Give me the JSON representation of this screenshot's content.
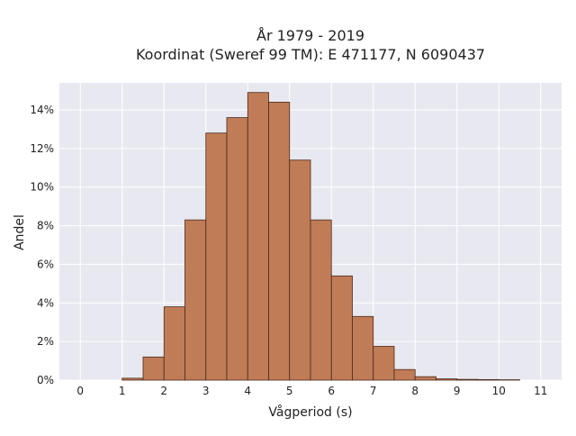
{
  "chart_data": {
    "type": "bar",
    "title_line1": "År 1979 - 2019",
    "title_line2": "Koordinat (Sweref 99 TM): E 471177, N 6090437",
    "xlabel": "Vågperiod (s)",
    "ylabel": "Andel",
    "xlim": [
      -0.5,
      11.5
    ],
    "ylim": [
      0,
      15.4
    ],
    "x_ticks": [
      0,
      1,
      2,
      3,
      4,
      5,
      6,
      7,
      8,
      9,
      10,
      11
    ],
    "x_tick_labels": [
      "0",
      "1",
      "2",
      "3",
      "4",
      "5",
      "6",
      "7",
      "8",
      "9",
      "10",
      "11"
    ],
    "y_ticks": [
      0,
      2,
      4,
      6,
      8,
      10,
      12,
      14
    ],
    "y_tick_labels": [
      "0%",
      "2%",
      "4%",
      "6%",
      "8%",
      "10%",
      "12%",
      "14%"
    ],
    "bin_width": 0.5,
    "bin_starts": [
      1.0,
      1.5,
      2.0,
      2.5,
      3.0,
      3.5,
      4.0,
      4.5,
      5.0,
      5.5,
      6.0,
      6.5,
      7.0,
      7.5,
      8.0,
      8.5,
      9.0,
      9.5,
      10.0
    ],
    "values": [
      0.1,
      1.2,
      3.8,
      8.3,
      12.8,
      13.6,
      14.9,
      14.4,
      11.4,
      8.3,
      5.4,
      3.3,
      1.75,
      0.55,
      0.18,
      0.07,
      0.04,
      0.03,
      0.02
    ],
    "grid": true,
    "colors": {
      "bar_fill": "#c07c56",
      "bar_edge": "#4a2a1a",
      "plot_bg": "#e8e8f1",
      "grid": "#ffffff"
    }
  }
}
